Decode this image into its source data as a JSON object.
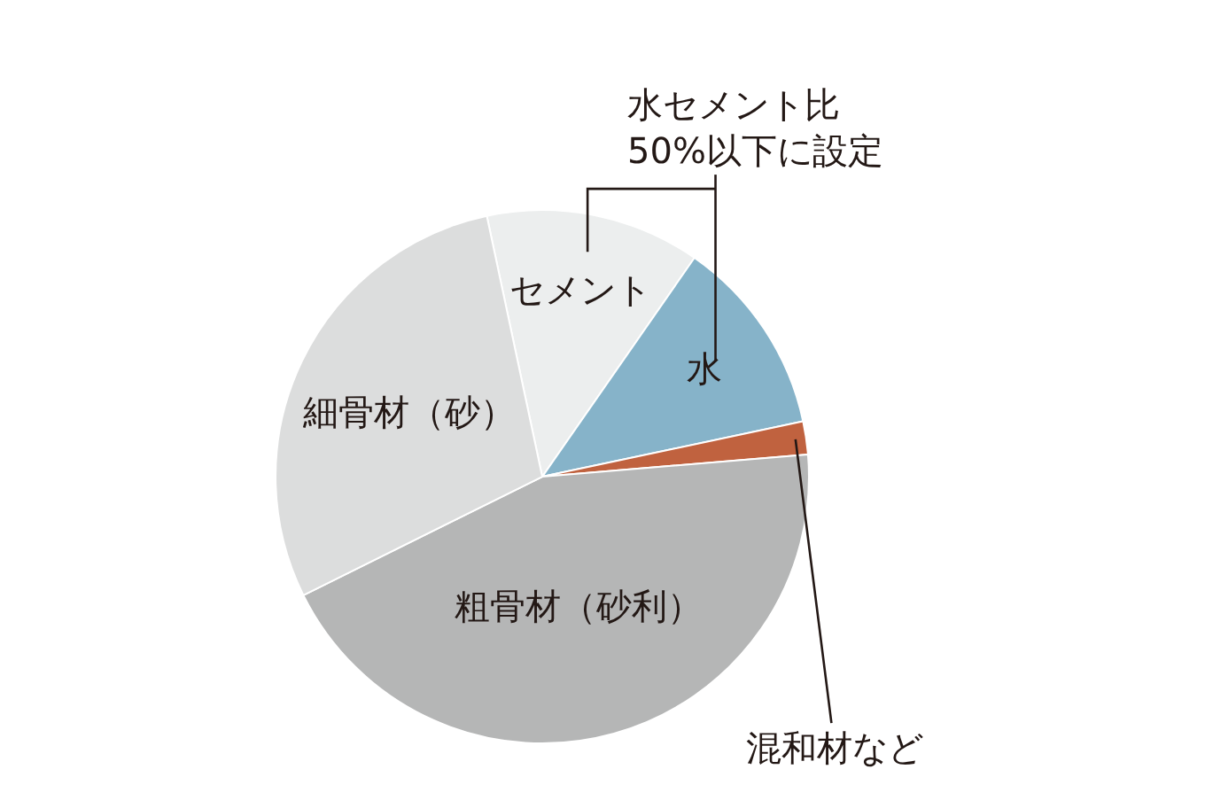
{
  "chart_data": {
    "type": "pie",
    "categories": [
      "セメント",
      "水",
      "混和材など",
      "粗骨材（砂利）",
      "細骨材（砂）"
    ],
    "values": [
      13,
      12,
      2,
      44,
      29
    ],
    "colors": [
      "#eceeee",
      "#86b3c9",
      "#c0623f",
      "#b5b6b6",
      "#dcdddd"
    ],
    "annotations": [
      "水セメント比\n50%以下に設定"
    ]
  }
}
